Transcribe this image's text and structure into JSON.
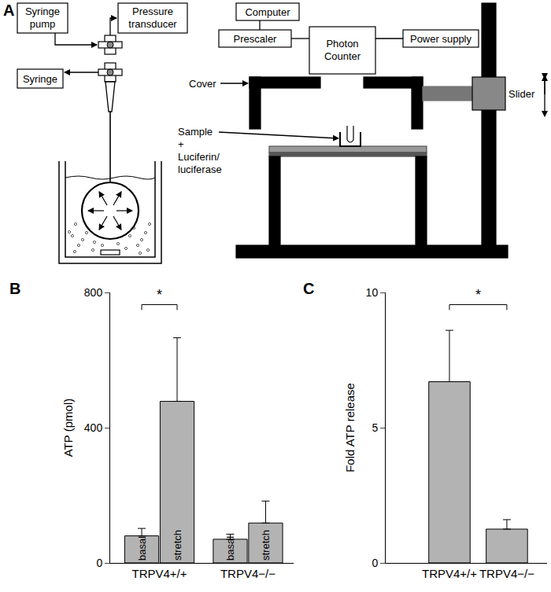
{
  "diagram": {
    "panel": "A",
    "left": {
      "syringe_pump": [
        "Syringe",
        "pump"
      ],
      "pressure_transducer": [
        "Pressure",
        "transducer"
      ],
      "syringe": [
        "Syringe"
      ]
    },
    "right": {
      "computer": [
        "Computer"
      ],
      "prescaler": [
        "Prescaler"
      ],
      "photon_counter": [
        "Photon",
        "Counter"
      ],
      "power_supply": [
        "Power supply"
      ],
      "cover": [
        "Cover"
      ],
      "slider": [
        "Slider"
      ],
      "sample": [
        "Sample",
        "+",
        "Luciferin/",
        "luciferase"
      ]
    }
  },
  "chart_data": [
    {
      "panel": "B",
      "type": "bar",
      "categories": [
        "basal",
        "stretch",
        "basal",
        "stretch"
      ],
      "group_labels": [
        "TRPV4+/+",
        "TRPV4−/−"
      ],
      "values": [
        80,
        478,
        70,
        118
      ],
      "errors": [
        22,
        188,
        15,
        65
      ],
      "color": "#b3b3b3",
      "y_label": "ATP (pmol)",
      "ylim": [
        0,
        800
      ],
      "yticks": [
        0,
        400,
        800
      ],
      "grid": false,
      "annotations": [
        {
          "text": "*",
          "from": 0,
          "to": 1
        }
      ]
    },
    {
      "panel": "C",
      "type": "bar",
      "categories": [
        "TRPV4+/+",
        "TRPV4−/−"
      ],
      "values": [
        6.7,
        1.25
      ],
      "errors": [
        1.9,
        0.35
      ],
      "color": "#b3b3b3",
      "y_label": "Fold ATP release",
      "ylim": [
        0,
        10
      ],
      "yticks": [
        0,
        5,
        10
      ],
      "grid": false,
      "annotations": [
        {
          "text": "*",
          "from": 0,
          "to": 1
        }
      ]
    }
  ]
}
